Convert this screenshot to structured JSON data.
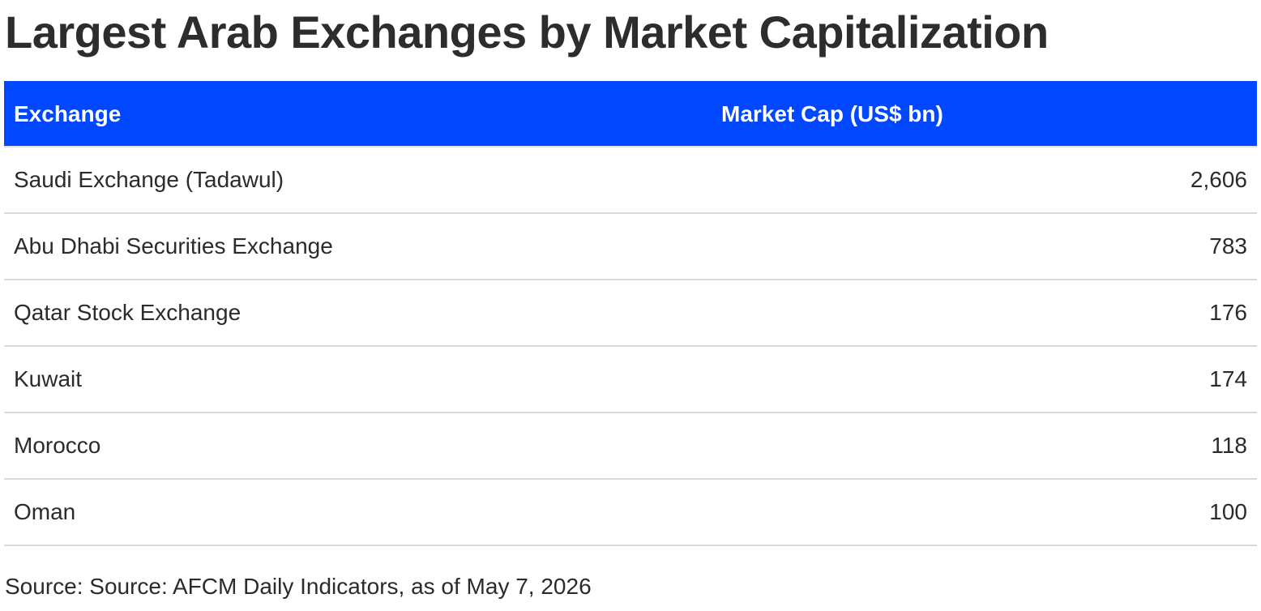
{
  "chart_data": {
    "type": "table",
    "title": "Largest Arab Exchanges by Market Capitalization",
    "columns": [
      "Exchange",
      "Market Cap (US$ bn)"
    ],
    "rows": [
      {
        "exchange": "Saudi Exchange (Tadawul)",
        "market_cap": "2,606"
      },
      {
        "exchange": "Abu Dhabi Securities Exchange",
        "market_cap": "783"
      },
      {
        "exchange": "Qatar Stock Exchange",
        "market_cap": "176"
      },
      {
        "exchange": "Kuwait",
        "market_cap": "174"
      },
      {
        "exchange": "Morocco",
        "market_cap": "118"
      },
      {
        "exchange": "Oman",
        "market_cap": "100"
      }
    ],
    "source": "Source: Source: AFCM Daily Indicators, as of May 7, 2026"
  },
  "colors": {
    "header_background": "#0047ff",
    "header_text": "#ffffff",
    "body_text": "#2b2b2b",
    "row_divider": "#d9d9d9"
  }
}
